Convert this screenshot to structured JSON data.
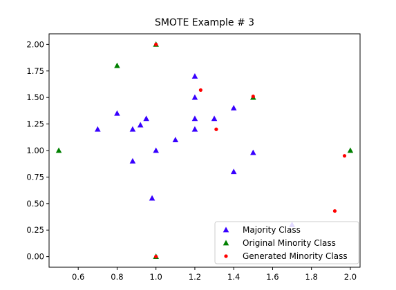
{
  "chart_data": {
    "type": "scatter",
    "title": "SMOTE Example # 3",
    "xlabel": "",
    "ylabel": "",
    "xlim": [
      0.45,
      2.05
    ],
    "ylim": [
      -0.1,
      2.1
    ],
    "xticks": [
      0.6,
      0.8,
      1.0,
      1.2,
      1.4,
      1.6,
      1.8,
      2.0
    ],
    "xtick_labels": [
      "0.6",
      "0.8",
      "1.0",
      "1.2",
      "1.4",
      "1.6",
      "1.8",
      "2.0"
    ],
    "yticks": [
      0.0,
      0.25,
      0.5,
      0.75,
      1.0,
      1.25,
      1.5,
      1.75,
      2.0
    ],
    "ytick_labels": [
      "0.00",
      "0.25",
      "0.50",
      "0.75",
      "1.00",
      "1.25",
      "1.50",
      "1.75",
      "2.00"
    ],
    "grid": false,
    "legend_position": "lower-right",
    "series": [
      {
        "name": "Majority Class",
        "marker": "triangle",
        "color": "#3700ff",
        "points": [
          [
            0.7,
            1.2
          ],
          [
            0.8,
            1.35
          ],
          [
            0.88,
            1.2
          ],
          [
            0.88,
            0.9
          ],
          [
            0.92,
            1.24
          ],
          [
            0.95,
            1.3
          ],
          [
            0.98,
            0.55
          ],
          [
            1.0,
            1.0
          ],
          [
            1.1,
            1.1
          ],
          [
            1.2,
            1.7
          ],
          [
            1.2,
            1.5
          ],
          [
            1.2,
            1.3
          ],
          [
            1.2,
            1.2
          ],
          [
            1.3,
            1.3
          ],
          [
            1.4,
            1.4
          ],
          [
            1.4,
            0.8
          ],
          [
            1.5,
            0.98
          ],
          [
            1.7,
            0.3
          ]
        ]
      },
      {
        "name": "Original Minority Class",
        "marker": "triangle",
        "color": "#008000",
        "points": [
          [
            0.5,
            1.0
          ],
          [
            0.8,
            1.8
          ],
          [
            1.0,
            2.0
          ],
          [
            1.0,
            0.0
          ],
          [
            1.5,
            1.5
          ],
          [
            2.0,
            1.0
          ]
        ]
      },
      {
        "name": "Generated Minority Class",
        "marker": "circle",
        "color": "#ff0000",
        "points": [
          [
            1.0,
            2.0
          ],
          [
            1.0,
            0.0
          ],
          [
            1.23,
            1.57
          ],
          [
            1.31,
            1.2
          ],
          [
            1.5,
            1.51
          ],
          [
            1.92,
            0.43
          ],
          [
            1.97,
            0.95
          ]
        ]
      }
    ]
  }
}
